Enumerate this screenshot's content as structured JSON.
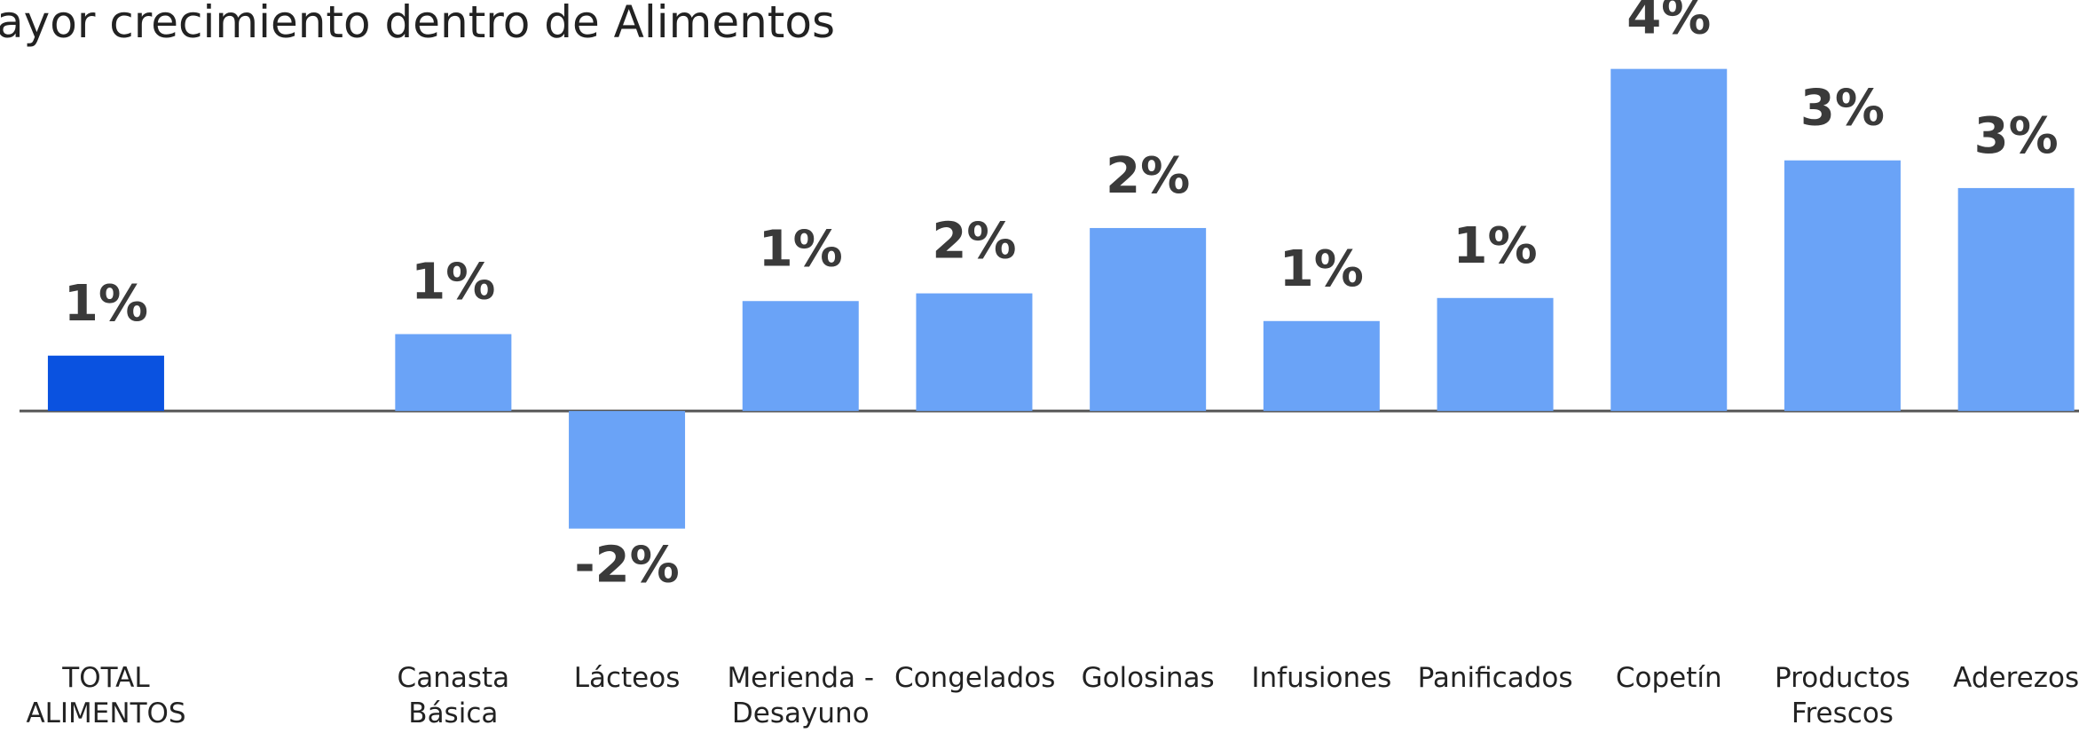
{
  "chart_data": {
    "type": "bar",
    "title": "ayor crecimiento dentro de Alimentos",
    "categories": [
      "TOTAL ALIMENTOS",
      null,
      "Canasta Básica",
      "Lácteos",
      "Merienda - Desayuno",
      "Congelados",
      "Golosinas",
      "Infusiones",
      "Panificados",
      "Copetín",
      "Productos Frescos",
      "Aderezos"
    ],
    "values": [
      0.72,
      null,
      1.0,
      -1.53,
      1.43,
      1.53,
      2.38,
      1.17,
      1.47,
      4.45,
      3.26,
      2.9
    ],
    "value_labels": [
      "1%",
      null,
      "1%",
      "-2%",
      "1%",
      "2%",
      "2%",
      "1%",
      "1%",
      "4%",
      "3%",
      "3%"
    ],
    "colors": [
      "#0a52e0",
      null,
      "#6aa3f7",
      "#6aa3f7",
      "#6aa3f7",
      "#6aa3f7",
      "#6aa3f7",
      "#6aa3f7",
      "#6aa3f7",
      "#6aa3f7",
      "#6aa3f7",
      "#6aa3f7"
    ],
    "ylim": [
      -3,
      5
    ]
  }
}
